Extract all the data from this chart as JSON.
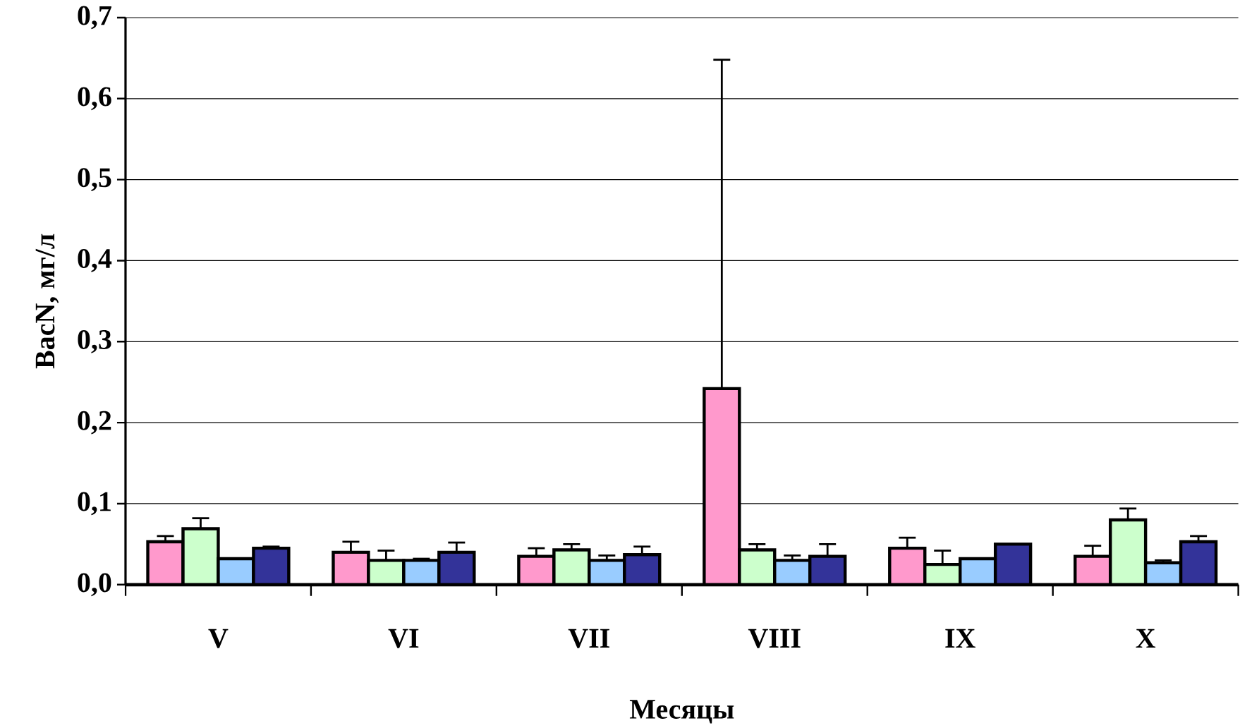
{
  "chart_data": {
    "type": "bar",
    "xlabel": "Месяцы",
    "ylabel": "BacN, мг/л",
    "categories": [
      "V",
      "VI",
      "VII",
      "VIII",
      "IX",
      "X"
    ],
    "series": [
      {
        "color": "#ff99cc",
        "values": [
          0.053,
          0.04,
          0.035,
          0.242,
          0.045,
          0.035
        ],
        "errors": [
          [
            0.053,
            0.06
          ],
          [
            0.04,
            0.053
          ],
          [
            0.035,
            0.045
          ],
          [
            0.242,
            0.648
          ],
          [
            0.045,
            0.058
          ],
          [
            0.035,
            0.048
          ]
        ]
      },
      {
        "color": "#ccffcc",
        "values": [
          0.069,
          0.03,
          0.043,
          0.043,
          0.025,
          0.08
        ],
        "errors": [
          [
            0.069,
            0.082
          ],
          [
            0.03,
            0.042
          ],
          [
            0.043,
            0.05
          ],
          [
            0.043,
            0.05
          ],
          [
            0.025,
            0.042
          ],
          [
            0.08,
            0.094
          ]
        ]
      },
      {
        "color": "#99ccff",
        "values": [
          0.032,
          0.03,
          0.03,
          0.03,
          0.032,
          0.027
        ],
        "errors": [
          null,
          [
            0.03,
            0.032
          ],
          [
            0.03,
            0.036
          ],
          [
            0.03,
            0.036
          ],
          null,
          [
            0.027,
            0.03
          ]
        ]
      },
      {
        "color": "#333399",
        "values": [
          0.045,
          0.04,
          0.037,
          0.035,
          0.05,
          0.053
        ],
        "errors": [
          [
            0.045,
            0.047
          ],
          [
            0.04,
            0.052
          ],
          [
            0.037,
            0.047
          ],
          [
            0.035,
            0.05
          ],
          null,
          [
            0.053,
            0.06
          ]
        ]
      }
    ],
    "ylim": [
      0,
      0.7
    ],
    "yticks": [
      {
        "value": 0,
        "label": "0,0"
      },
      {
        "value": 0.1,
        "label": "0,1"
      },
      {
        "value": 0.2,
        "label": "0,2"
      },
      {
        "value": 0.3,
        "label": "0,3"
      },
      {
        "value": 0.4,
        "label": "0,4"
      },
      {
        "value": 0.5,
        "label": "0,5"
      },
      {
        "value": 0.6,
        "label": "0,6"
      },
      {
        "value": 0.7,
        "label": "0,7"
      }
    ],
    "grid": "y"
  }
}
